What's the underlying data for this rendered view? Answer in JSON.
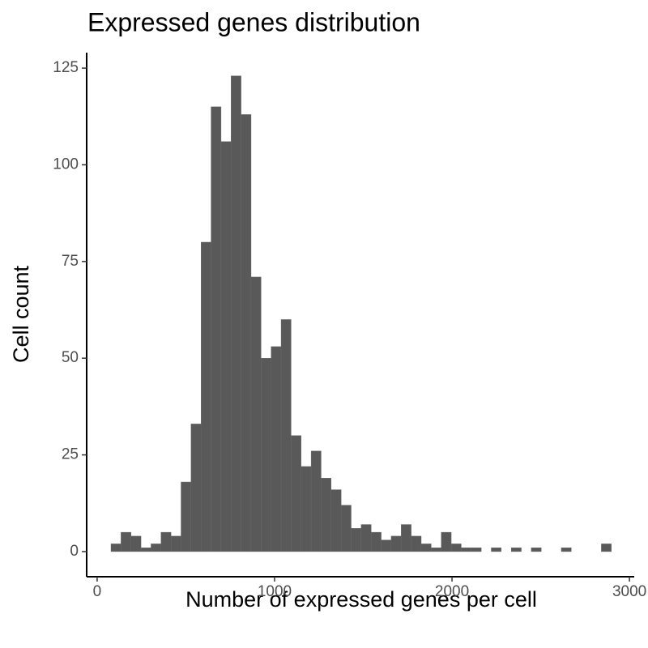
{
  "chart_data": {
    "type": "histogram",
    "title": "Expressed genes distribution",
    "xlabel": "Number of expressed genes per cell",
    "ylabel": "Cell count",
    "bins": [
      78,
      134.4,
      190.8,
      247.2,
      303.6,
      360,
      416.4,
      472.8,
      529.2,
      585.6,
      642,
      698.4,
      754.8,
      811.2,
      867.6,
      924,
      980.4,
      1036.8,
      1093.2,
      1149.6,
      1206,
      1262.4,
      1318.8,
      1375.2,
      1431.6,
      1488,
      1544.4,
      1600.8,
      1657.2,
      1713.6,
      1770,
      1826.4,
      1882.8,
      1939.2,
      1995.6,
      2052,
      2108.4,
      2164.8,
      2221.2,
      2277.6,
      2334,
      2390.4,
      2446.8,
      2503.2,
      2559.6,
      2616,
      2672.4,
      2728.8,
      2785.2,
      2841.6,
      2898
    ],
    "values": [
      2,
      5,
      4,
      1,
      2,
      5,
      4,
      18,
      33,
      80,
      115,
      106,
      123,
      113,
      71,
      50,
      53,
      60,
      30,
      22,
      26,
      19,
      16,
      12,
      6,
      7,
      5,
      3,
      4,
      7,
      4,
      2,
      1,
      5,
      2,
      1,
      1,
      0,
      1,
      0,
      1,
      0,
      1,
      0,
      0,
      1,
      0,
      0,
      0,
      2
    ],
    "color": "#595959",
    "xlim": [
      -59,
      3027
    ],
    "ylim": [
      -6.5,
      129
    ],
    "xticks": [
      0,
      1000,
      2000,
      3000
    ],
    "yticks": [
      0,
      25,
      50,
      75,
      100,
      125
    ]
  }
}
